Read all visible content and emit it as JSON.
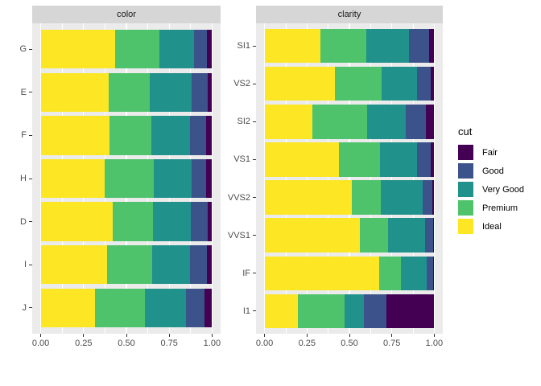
{
  "style": {
    "strip_bg": "#d6d6d6",
    "panel_bg": "#ebebeb",
    "grid_color": "#ffffff",
    "tick_color": "#333333",
    "axis_text_color": "#4d4d4d",
    "strip_text_color": "#1a1a1a",
    "background": "#ffffff"
  },
  "chart_data": {
    "type": "bar",
    "subtype": "horizontal-stacked-proportion",
    "position": "fill",
    "grid": true,
    "x_axis": {
      "range": [
        0,
        1
      ],
      "tick_labels": [
        "0.00",
        "0.25",
        "0.50",
        "0.75",
        "1.00"
      ],
      "tick_values": [
        0,
        0.25,
        0.5,
        0.75,
        1
      ],
      "minor_values": [
        0.125,
        0.375,
        0.625,
        0.875
      ]
    },
    "legend": {
      "title": "cut",
      "position": "right",
      "entries": [
        {
          "label": "Fair",
          "color": "#440154"
        },
        {
          "label": "Good",
          "color": "#3b528b"
        },
        {
          "label": "Very Good",
          "color": "#21918c"
        },
        {
          "label": "Premium",
          "color": "#4ec36b"
        },
        {
          "label": "Ideal",
          "color": "#fde725"
        }
      ]
    },
    "stack_order_left_to_right": [
      "Ideal",
      "Premium",
      "Very Good",
      "Good",
      "Fair"
    ],
    "facets": [
      {
        "strip_label": "color",
        "categories": [
          "G",
          "E",
          "F",
          "H",
          "D",
          "I",
          "J"
        ],
        "series": [
          {
            "name": "Fair",
            "values": [
              0.0278,
              0.0229,
              0.0327,
              0.0365,
              0.0241,
              0.0323,
              0.0424
            ]
          },
          {
            "name": "Good",
            "values": [
              0.0771,
              0.0952,
              0.0953,
              0.0845,
              0.0977,
              0.0963,
              0.1093
            ]
          },
          {
            "name": "Very Good",
            "values": [
              0.2036,
              0.245,
              0.2268,
              0.2196,
              0.2233,
              0.2221,
              0.2414
            ]
          },
          {
            "name": "Premium",
            "values": [
              0.2589,
              0.2385,
              0.2443,
              0.2842,
              0.2366,
              0.2634,
              0.2877
            ]
          },
          {
            "name": "Ideal",
            "values": [
              0.4325,
              0.3984,
              0.401,
              0.3751,
              0.4183,
              0.386,
              0.3191
            ]
          }
        ]
      },
      {
        "strip_label": "clarity",
        "categories": [
          "SI1",
          "VS2",
          "SI2",
          "VS1",
          "VVS2",
          "VVS1",
          "IF",
          "I1"
        ],
        "series": [
          {
            "name": "Fair",
            "values": [
              0.0312,
              0.0213,
              0.0507,
              0.0208,
              0.0136,
              0.0047,
              0.005,
              0.2834
            ]
          },
          {
            "name": "Good",
            "values": [
              0.1194,
              0.0798,
              0.1176,
              0.0793,
              0.0565,
              0.0509,
              0.0397,
              0.1296
            ]
          },
          {
            "name": "Very Good",
            "values": [
              0.248,
              0.2114,
              0.2284,
              0.2172,
              0.2438,
              0.2159,
              0.1497,
              0.1134
            ]
          },
          {
            "name": "Premium",
            "values": [
              0.2736,
              0.2739,
              0.3208,
              0.2434,
              0.1717,
              0.1685,
              0.1285,
              0.2766
            ]
          },
          {
            "name": "Ideal",
            "values": [
              0.3277,
              0.4137,
              0.2826,
              0.4392,
              0.5144,
              0.5601,
              0.6771,
              0.197
            ]
          }
        ]
      }
    ]
  }
}
